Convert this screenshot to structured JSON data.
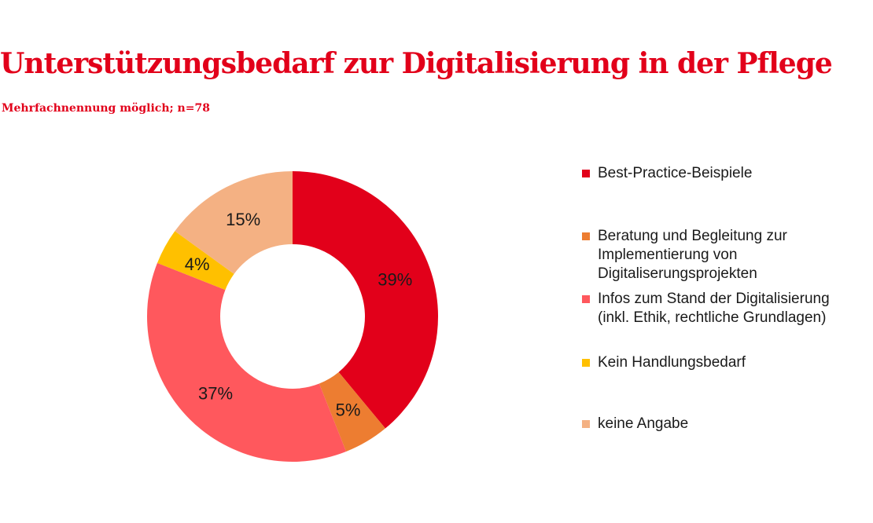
{
  "title": "Unterstützungsbedarf zur Digitalisierung in der Pflege",
  "subtitle": "Mehrfachnennung möglich; n=78",
  "chart_data": {
    "type": "pie",
    "variant": "donut",
    "title": "Unterstützungsbedarf zur Digitalisierung in der Pflege",
    "subtitle": "Mehrfachnennung möglich; n=78",
    "legend_position": "right",
    "unit": "%",
    "slices": [
      {
        "label": "Best-Practice-Beispiele",
        "value": 39,
        "display": "39%",
        "color": "#e2001a"
      },
      {
        "label": "Beratung und Begleitung zur Implementierung von Digitaliserungsprojekten",
        "value": 5,
        "display": "5%",
        "color": "#ed7d31"
      },
      {
        "label": "Infos zum Stand der Digitalisierung (inkl. Ethik, rechtliche Grundlagen)",
        "value": 37,
        "display": "37%",
        "color": "#ff585d"
      },
      {
        "label": "Kein Handlungsbedarf",
        "value": 4,
        "display": "4%",
        "color": "#ffc000"
      },
      {
        "label": "keine Angabe",
        "value": 15,
        "display": "15%",
        "color": "#f4b183"
      }
    ]
  }
}
